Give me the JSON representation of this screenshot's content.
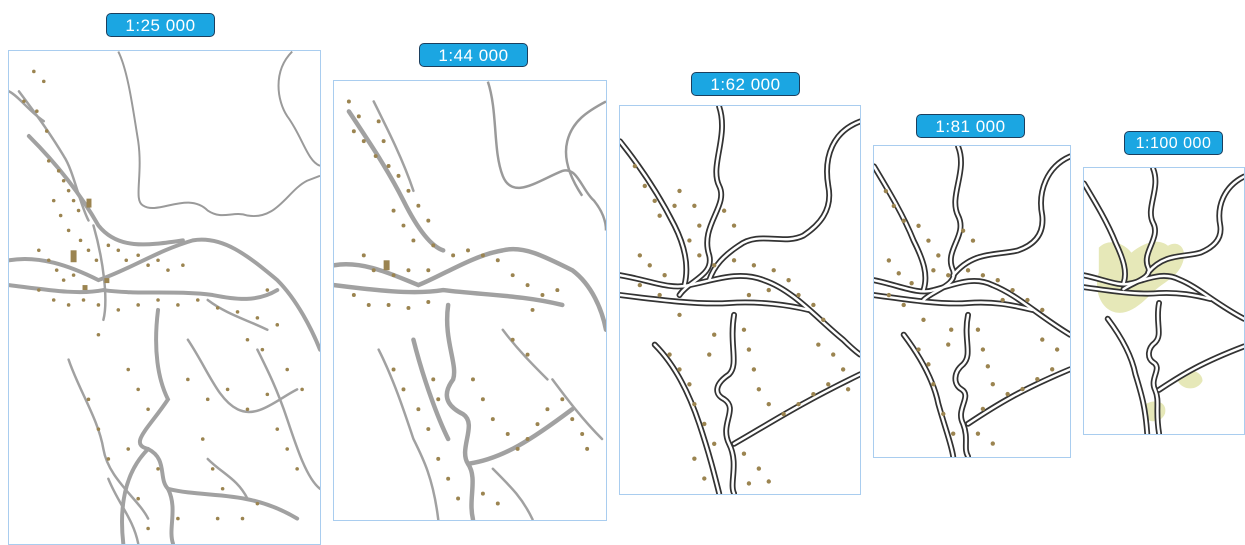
{
  "figure": {
    "panels": [
      {
        "scale": "1:25 000",
        "style": "light-roads"
      },
      {
        "scale": "1:44 000",
        "style": "light-roads"
      },
      {
        "scale": "1:62 000",
        "style": "cased-roads"
      },
      {
        "scale": "1:81 000",
        "style": "cased-roads"
      },
      {
        "scale": "1:100 000",
        "style": "cased-roads-with-builtup-areas"
      }
    ]
  },
  "colors": {
    "badge_fill": "#1ba6e2",
    "badge_border": "#1c3f5e",
    "frame_border": "#a9cdef",
    "light_road": "#a1a1a1",
    "boundary": "#9a9a9a",
    "cased_road_casing": "#333333",
    "cased_road_fill": "#ffffff",
    "building": "#9b8450",
    "builtup_area": "#e6e8b8"
  }
}
